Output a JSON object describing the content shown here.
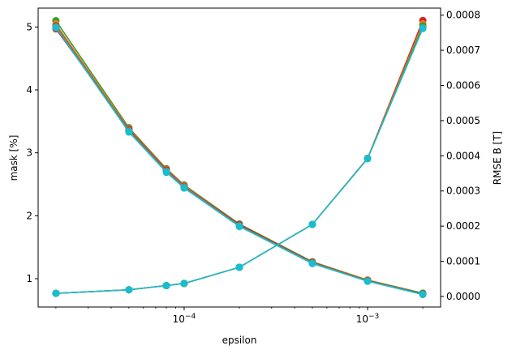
{
  "chart_data": {
    "type": "line",
    "title": "",
    "xlabel": "epsilon",
    "ylabel_left": "mask [%]",
    "ylabel_right": "RMSE B [T]",
    "x_scale": "log",
    "xlim": [
      1.6e-05,
      0.0025
    ],
    "ylim_left": [
      0.55,
      5.3
    ],
    "ylim_right": [
      -3e-05,
      0.00082
    ],
    "x": [
      2e-05,
      5e-05,
      8e-05,
      0.0001,
      0.0002,
      0.0005,
      0.001,
      0.002
    ],
    "x_ticks": [
      {
        "value": 0.0001,
        "base": "10",
        "exp": "−4"
      },
      {
        "value": 0.001,
        "base": "10",
        "exp": "−3"
      }
    ],
    "y_ticks_left": [
      {
        "value": 1,
        "label": "1"
      },
      {
        "value": 2,
        "label": "2"
      },
      {
        "value": 3,
        "label": "3"
      },
      {
        "value": 4,
        "label": "4"
      },
      {
        "value": 5,
        "label": "5"
      }
    ],
    "y_ticks_right": [
      {
        "value": 0,
        "label": "0.0000"
      },
      {
        "value": 0.0001,
        "label": "0.0001"
      },
      {
        "value": 0.0002,
        "label": "0.0002"
      },
      {
        "value": 0.0003,
        "label": "0.0003"
      },
      {
        "value": 0.0004,
        "label": "0.0004"
      },
      {
        "value": 0.0005,
        "label": "0.0005"
      },
      {
        "value": 0.0006,
        "label": "0.0006"
      },
      {
        "value": 0.0007,
        "label": "0.0007"
      },
      {
        "value": 0.0008,
        "label": "0.0008"
      }
    ],
    "grid": false,
    "legend": "none",
    "series": [
      {
        "axis": "left",
        "color": "#2ca02c",
        "values": [
          5.1,
          3.4,
          2.75,
          2.49,
          1.87,
          1.27,
          0.98,
          0.77
        ]
      },
      {
        "axis": "left",
        "color": "#ff7f0e",
        "values": [
          5.05,
          3.38,
          2.74,
          2.48,
          1.86,
          1.26,
          0.98,
          0.76
        ]
      },
      {
        "axis": "left",
        "color": "#d62728",
        "values": [
          4.97,
          3.37,
          2.73,
          2.47,
          1.86,
          1.26,
          0.97,
          0.76
        ]
      },
      {
        "axis": "left",
        "color": "#8c564b",
        "values": [
          5.02,
          3.36,
          2.72,
          2.46,
          1.85,
          1.25,
          0.97,
          0.76
        ]
      },
      {
        "axis": "left",
        "color": "#7f7f7f",
        "values": [
          5.0,
          3.35,
          2.71,
          2.46,
          1.84,
          1.25,
          0.96,
          0.75
        ]
      },
      {
        "axis": "left",
        "color": "#17becf",
        "values": [
          4.99,
          3.33,
          2.69,
          2.44,
          1.83,
          1.24,
          0.96,
          0.75
        ]
      },
      {
        "axis": "right",
        "color": "#d62728",
        "values": [
          9e-06,
          1.9e-05,
          3.1e-05,
          3.7e-05,
          8.3e-05,
          0.000205,
          0.000393,
          0.000785
        ]
      },
      {
        "axis": "right",
        "color": "#ff7f0e",
        "values": [
          9e-06,
          1.9e-05,
          3.1e-05,
          3.7e-05,
          8.3e-05,
          0.000205,
          0.000393,
          0.000775
        ]
      },
      {
        "axis": "right",
        "color": "#2ca02c",
        "values": [
          9e-06,
          1.9e-05,
          3.1e-05,
          3.7e-05,
          8.3e-05,
          0.000205,
          0.000392,
          0.00077
        ]
      },
      {
        "axis": "right",
        "color": "#7f7f7f",
        "values": [
          9e-06,
          1.9e-05,
          3.1e-05,
          3.7e-05,
          8.3e-05,
          0.000205,
          0.000392,
          0.000765
        ]
      },
      {
        "axis": "right",
        "color": "#17becf",
        "values": [
          9e-06,
          1.9e-05,
          3.1e-05,
          3.7e-05,
          8.3e-05,
          0.000205,
          0.000392,
          0.000762
        ]
      }
    ]
  }
}
